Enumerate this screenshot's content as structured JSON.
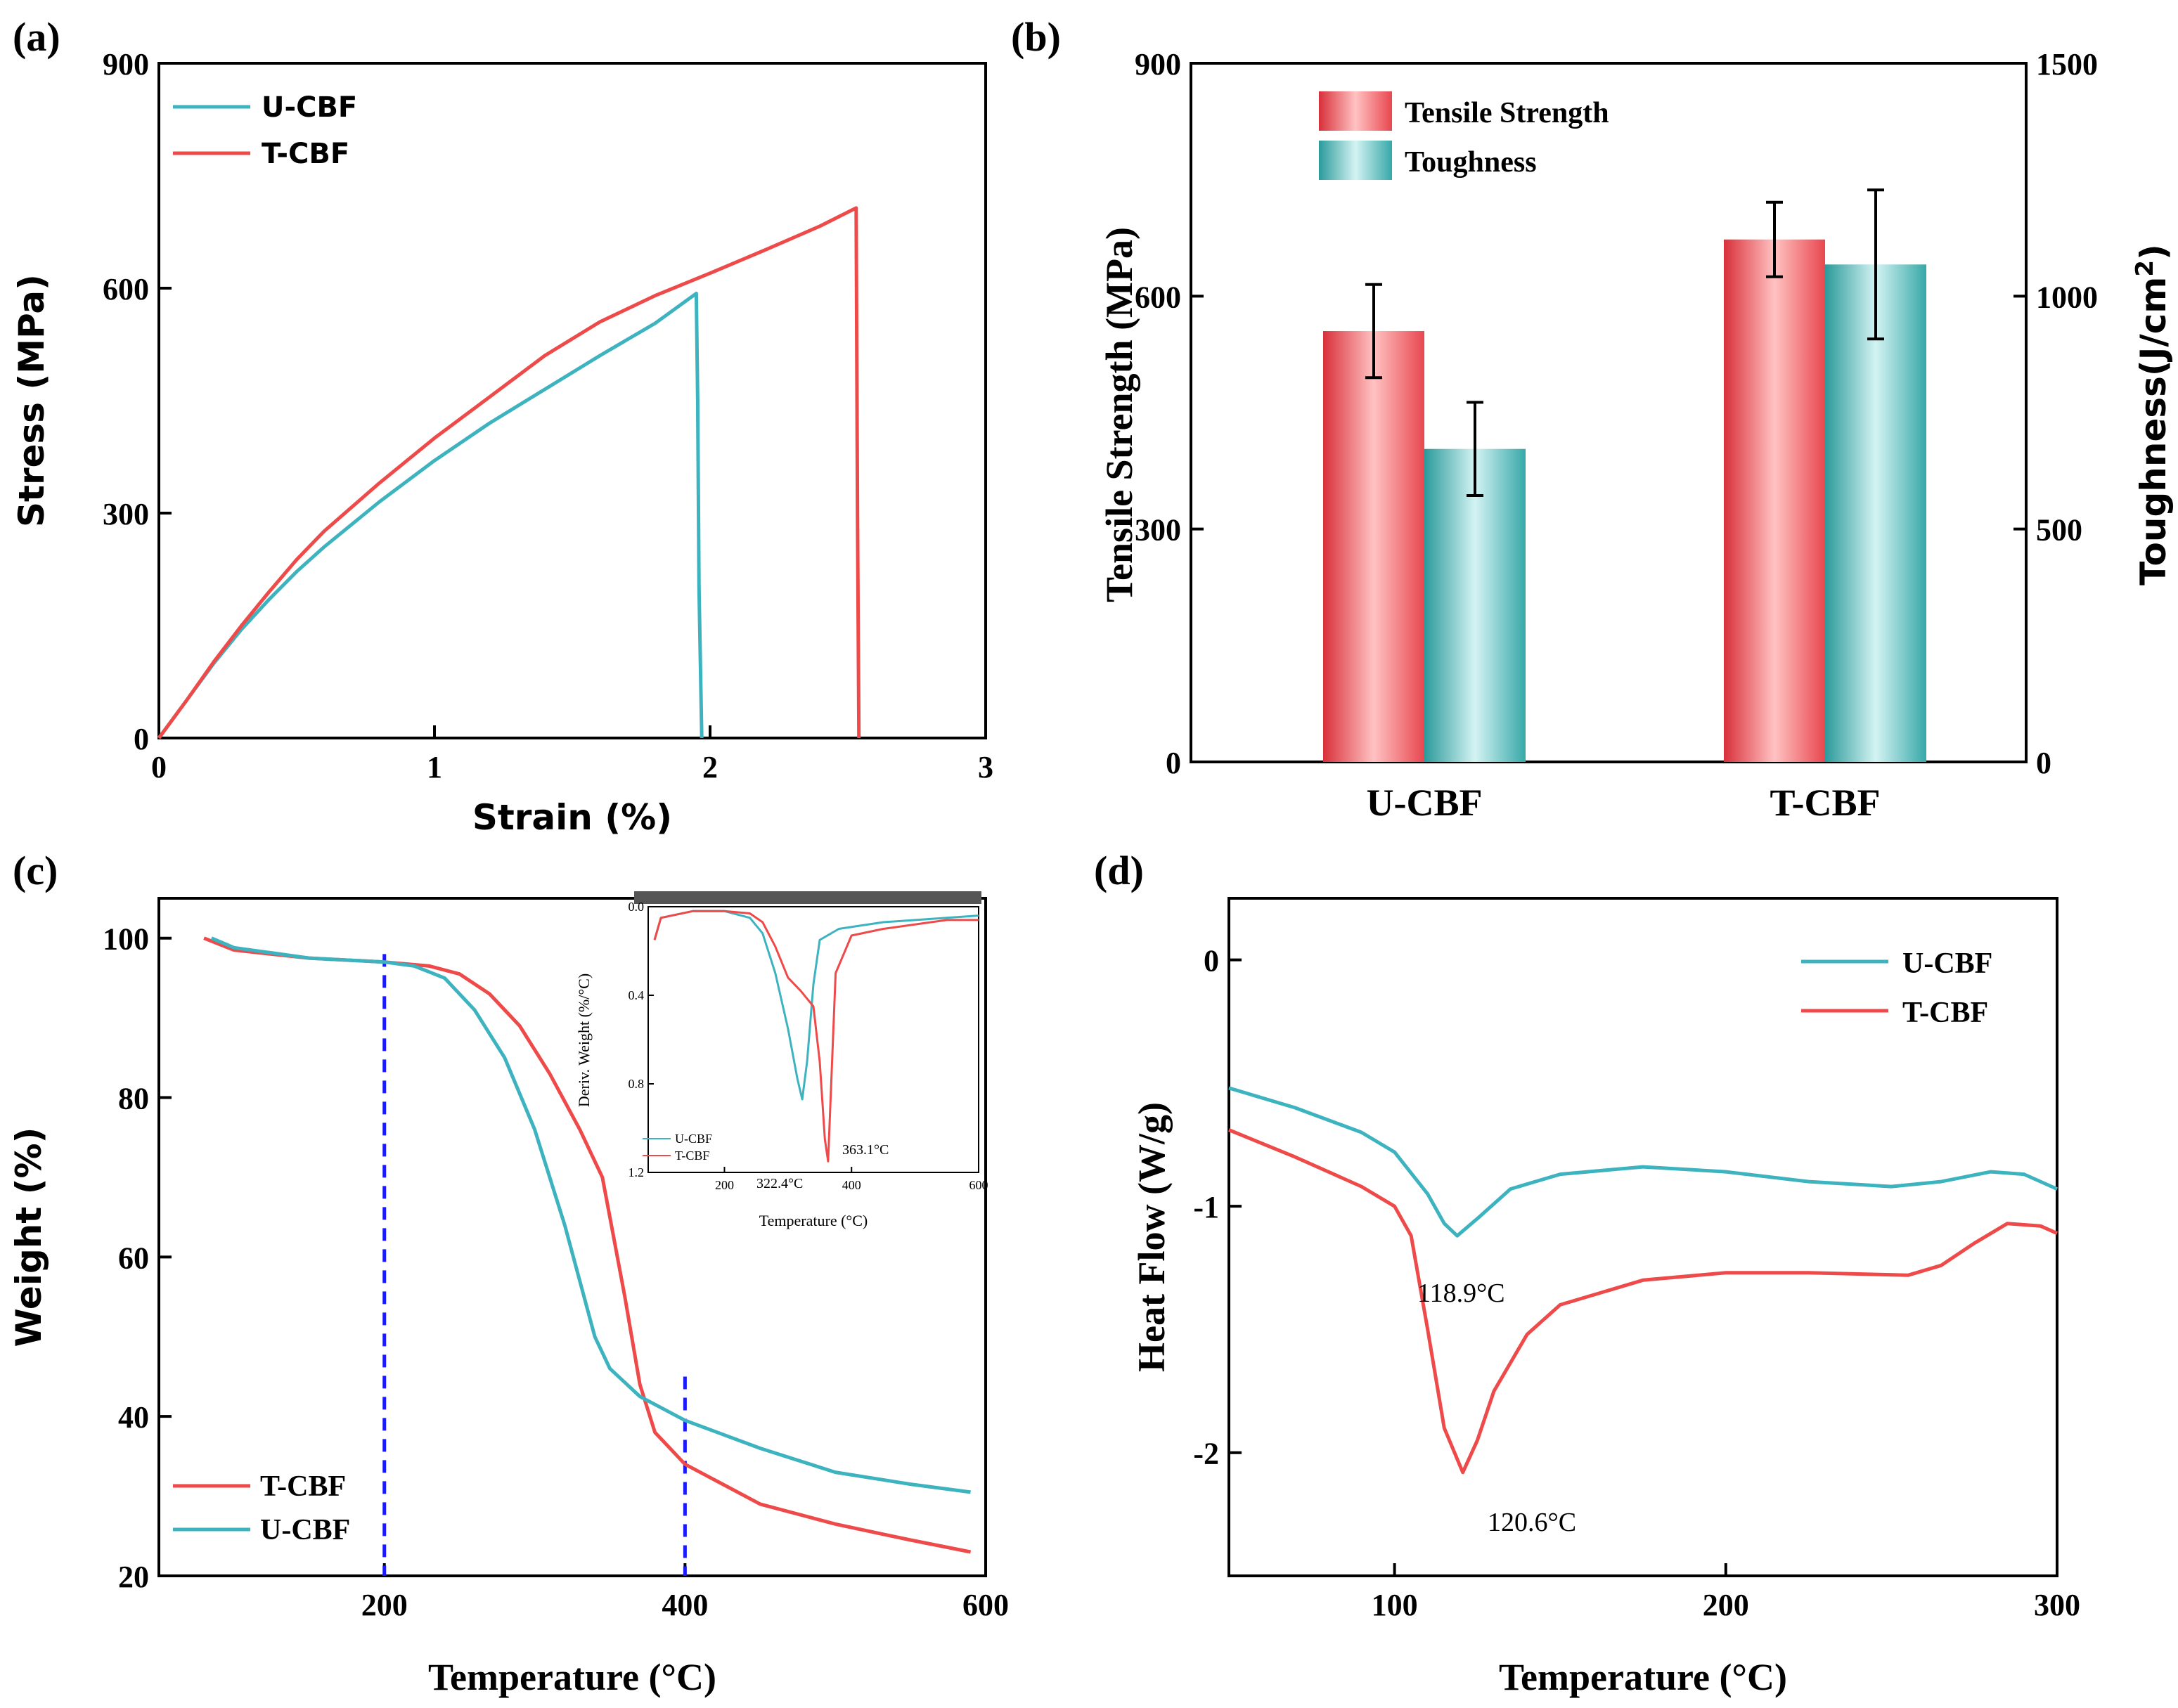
{
  "colors": {
    "u_cbf": "#3db3c0",
    "t_cbf": "#ef4a4a",
    "guide": "#1a1aff",
    "bar_red": "#e8474f",
    "bar_teal": "#37a8a8"
  },
  "chart_data": [
    {
      "panel": "(a)",
      "type": "line",
      "xlabel": "Strain (%)",
      "ylabel": "Stress (MPa)",
      "xlim": [
        0,
        3
      ],
      "ylim": [
        0,
        900
      ],
      "xticks": [
        "0",
        "1",
        "2",
        "3"
      ],
      "yticks": [
        "0",
        "300",
        "600",
        "900"
      ],
      "legend_position": "top-left",
      "series": [
        {
          "name": "U-CBF",
          "color": "#3db3c0",
          "x": [
            0,
            0.1,
            0.2,
            0.3,
            0.4,
            0.5,
            0.6,
            0.8,
            1.0,
            1.2,
            1.4,
            1.6,
            1.8,
            1.95,
            1.955,
            1.96,
            1.97
          ],
          "y": [
            0,
            50,
            100,
            145,
            185,
            222,
            255,
            315,
            370,
            420,
            465,
            510,
            553,
            593,
            450,
            200,
            0
          ]
        },
        {
          "name": "T-CBF",
          "color": "#ef4a4a",
          "x": [
            0,
            0.1,
            0.2,
            0.3,
            0.4,
            0.5,
            0.6,
            0.8,
            1.0,
            1.2,
            1.4,
            1.6,
            1.8,
            2.0,
            2.2,
            2.4,
            2.53,
            2.535,
            2.54
          ],
          "y": [
            0,
            50,
            102,
            150,
            195,
            238,
            276,
            340,
            400,
            455,
            510,
            555,
            590,
            620,
            651,
            683,
            707,
            300,
            0
          ]
        }
      ]
    },
    {
      "panel": "(b)",
      "type": "bar",
      "categories": [
        "U-CBF",
        "T-CBF"
      ],
      "ylabel": "Tensile Strength (MPa)",
      "y2label": "Toughness(J/cm²)",
      "ylim": [
        0,
        900
      ],
      "y2lim": [
        0,
        1500
      ],
      "yticks": [
        "0",
        "300",
        "600",
        "900"
      ],
      "y2ticks": [
        "0",
        "500",
        "1000",
        "1500"
      ],
      "legend_position": "top-left",
      "series": [
        {
          "name": "Tensile Strength",
          "axis": "left",
          "color": "#e8474f",
          "values": [
            555,
            673
          ],
          "errors": [
            60,
            48
          ]
        },
        {
          "name": "Toughness",
          "axis": "right",
          "color": "#37a8a8",
          "values": [
            672,
            1068
          ],
          "errors": [
            100,
            160
          ]
        }
      ]
    },
    {
      "panel": "(c)",
      "type": "line",
      "xlabel": "Temperature (°C)",
      "ylabel": "Weight (%)",
      "xlim": [
        50,
        600
      ],
      "ylim": [
        20,
        105
      ],
      "xticks": [
        "200",
        "400",
        "600"
      ],
      "yticks": [
        "20",
        "40",
        "60",
        "80",
        "100"
      ],
      "legend_position": "bottom-left",
      "guides_x": [
        200,
        400
      ],
      "series": [
        {
          "name": "T-CBF",
          "color": "#ef4a4a",
          "x": [
            80,
            100,
            150,
            200,
            230,
            250,
            270,
            290,
            310,
            330,
            345,
            350,
            360,
            370,
            380,
            400,
            450,
            500,
            550,
            590
          ],
          "y": [
            100,
            98.5,
            97.5,
            97,
            96.5,
            95.5,
            93,
            89,
            83,
            76,
            70,
            65,
            55,
            44,
            38,
            34,
            29,
            26.5,
            24.5,
            23
          ]
        },
        {
          "name": "U-CBF",
          "color": "#3db3c0",
          "x": [
            85,
            100,
            150,
            200,
            220,
            240,
            260,
            280,
            300,
            320,
            340,
            350,
            370,
            400,
            450,
            500,
            550,
            590
          ],
          "y": [
            100,
            98.8,
            97.5,
            97,
            96.5,
            95,
            91,
            85,
            76,
            64,
            50,
            46,
            42.5,
            39.5,
            36,
            33,
            31.5,
            30.5
          ]
        }
      ]
    },
    {
      "panel": "(c) inset",
      "type": "line",
      "xlabel": "Temperature (°C)",
      "ylabel": "Deriv. Weight (%/°C)",
      "xlim": [
        80,
        600
      ],
      "ylim": [
        1.2,
        0
      ],
      "xticks": [
        "200",
        "400",
        "600"
      ],
      "yticks": [
        "0.0",
        "0.4",
        "0.8",
        "1.2"
      ],
      "legend_position": "bottom-left",
      "annotations": [
        "322.4°C",
        "363.1°C"
      ],
      "series": [
        {
          "name": "U-CBF",
          "color": "#3db3c0",
          "x": [
            90,
            100,
            150,
            200,
            240,
            260,
            280,
            300,
            315,
            322.4,
            330,
            340,
            350,
            380,
            450,
            550,
            600
          ],
          "y": [
            0.15,
            0.05,
            0.02,
            0.02,
            0.05,
            0.12,
            0.3,
            0.55,
            0.78,
            0.87,
            0.7,
            0.35,
            0.15,
            0.1,
            0.07,
            0.05,
            0.04
          ]
        },
        {
          "name": "T-CBF",
          "color": "#ef4a4a",
          "x": [
            90,
            100,
            150,
            200,
            240,
            260,
            280,
            300,
            320,
            340,
            350,
            358,
            363.1,
            368,
            375,
            400,
            450,
            550,
            600
          ],
          "y": [
            0.15,
            0.05,
            0.02,
            0.02,
            0.03,
            0.07,
            0.18,
            0.32,
            0.38,
            0.45,
            0.7,
            1.05,
            1.15,
            0.8,
            0.3,
            0.13,
            0.1,
            0.06,
            0.06
          ]
        }
      ]
    },
    {
      "panel": "(d)",
      "type": "line",
      "xlabel": "Temperature (°C)",
      "ylabel": "Heat Flow (W/g)",
      "xlim": [
        50,
        300
      ],
      "ylim": [
        -2.5,
        0.25
      ],
      "xticks": [
        "100",
        "200",
        "300"
      ],
      "yticks": [
        "-2",
        "-1",
        "0"
      ],
      "legend_position": "top-right",
      "annotations": [
        "118.9°C",
        "120.6°C"
      ],
      "series": [
        {
          "name": "U-CBF",
          "color": "#3db3c0",
          "x": [
            50,
            70,
            90,
            100,
            110,
            115,
            118.9,
            125,
            135,
            150,
            175,
            200,
            225,
            250,
            265,
            280,
            290,
            300
          ],
          "y": [
            -0.52,
            -0.6,
            -0.7,
            -0.78,
            -0.95,
            -1.07,
            -1.12,
            -1.05,
            -0.93,
            -0.87,
            -0.84,
            -0.86,
            -0.9,
            -0.92,
            -0.9,
            -0.86,
            -0.87,
            -0.93
          ]
        },
        {
          "name": "T-CBF",
          "color": "#ef4a4a",
          "x": [
            50,
            70,
            90,
            100,
            105,
            110,
            115,
            120.6,
            125,
            130,
            140,
            150,
            175,
            200,
            225,
            255,
            265,
            275,
            285,
            295,
            300
          ],
          "y": [
            -0.69,
            -0.8,
            -0.92,
            -1.0,
            -1.12,
            -1.5,
            -1.9,
            -2.08,
            -1.95,
            -1.75,
            -1.52,
            -1.4,
            -1.3,
            -1.27,
            -1.27,
            -1.28,
            -1.24,
            -1.15,
            -1.07,
            -1.08,
            -1.11
          ]
        }
      ]
    }
  ]
}
